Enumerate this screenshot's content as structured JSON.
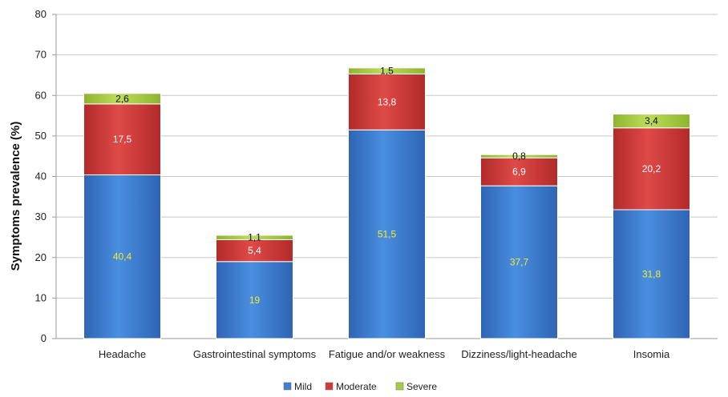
{
  "chart_data": {
    "type": "bar",
    "stacked": true,
    "title": "",
    "xlabel": "",
    "ylabel": "Symptoms prevalence (%)",
    "ylim": [
      0,
      80
    ],
    "yticks": [
      0,
      10,
      20,
      30,
      40,
      50,
      60,
      70,
      80
    ],
    "grid": true,
    "legend_position": "bottom",
    "categories": [
      "Headache",
      "Gastrointestinal symptoms",
      "Fatigue and/or weakness",
      "Dizziness/light-headache",
      "Insomia"
    ],
    "series": [
      {
        "name": "Mild",
        "values": [
          40.4,
          19,
          51.5,
          37.7,
          31.8
        ],
        "labels": [
          "40,4",
          "19",
          "51,5",
          "37,7",
          "31,8"
        ],
        "color": "#3f7fd4",
        "label_color": "#f2ee2e"
      },
      {
        "name": "Moderate",
        "values": [
          17.5,
          5.4,
          13.8,
          6.9,
          20.2
        ],
        "labels": [
          "17,5",
          "5,4",
          "13,8",
          "6,9",
          "20,2"
        ],
        "color": "#cf3a3a",
        "label_color": "#ffffff"
      },
      {
        "name": "Severe",
        "values": [
          2.6,
          1.1,
          1.5,
          0.8,
          3.4
        ],
        "labels": [
          "2,6",
          "1,1",
          "1,5",
          "0,8",
          "3,4"
        ],
        "color": "#a6cc45",
        "label_color": "#111111"
      }
    ]
  }
}
